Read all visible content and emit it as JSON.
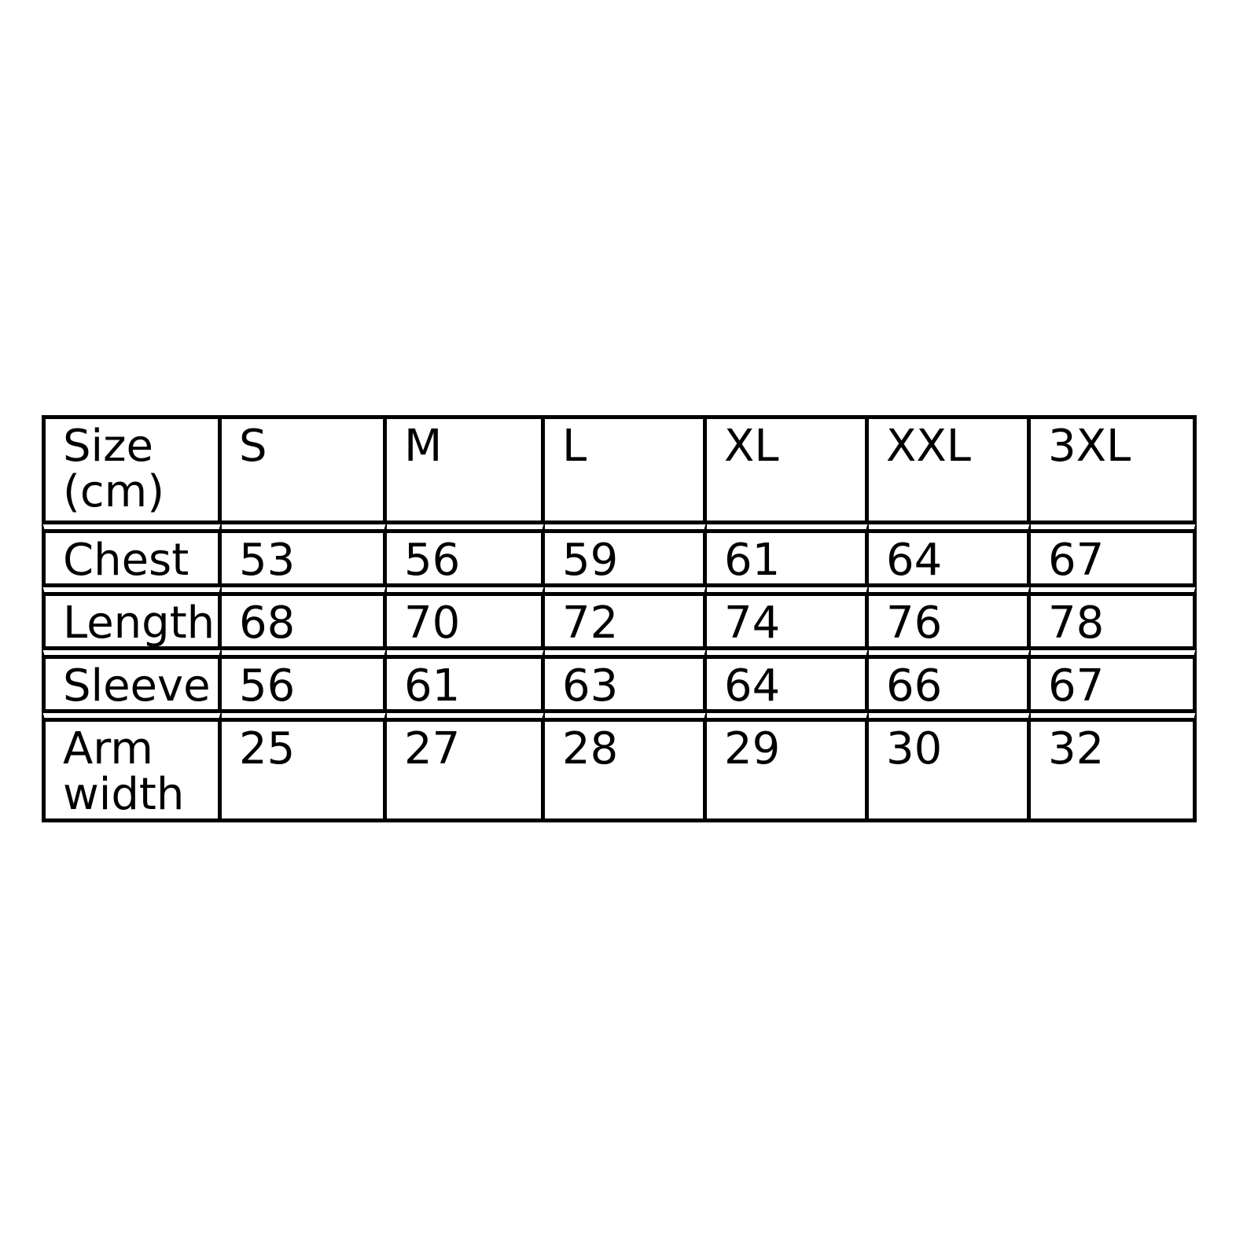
{
  "table": {
    "columns": [
      "Size (cm)",
      "S",
      "M",
      "L",
      "XL",
      "XXL",
      "3XL"
    ],
    "rows": [
      {
        "label": "Chest",
        "values": [
          "53",
          "56",
          "59",
          "61",
          "64",
          "67"
        ]
      },
      {
        "label": "Length",
        "values": [
          "68",
          "70",
          "72",
          "74",
          "76",
          "78"
        ]
      },
      {
        "label": "Sleeve",
        "values": [
          "56",
          "61",
          "63",
          "64",
          "66",
          "67"
        ]
      },
      {
        "label": "Arm width",
        "values": [
          "25",
          "27",
          "28",
          "29",
          "30",
          "32"
        ]
      }
    ],
    "colors": {
      "border": "#000000",
      "text": "#000000",
      "background": "#ffffff"
    }
  },
  "chart_data": {
    "type": "table",
    "units": "cm",
    "columns": [
      "Size (cm)",
      "S",
      "M",
      "L",
      "XL",
      "XXL",
      "3XL"
    ],
    "rows": [
      [
        "Chest",
        53,
        56,
        59,
        61,
        64,
        67
      ],
      [
        "Length",
        68,
        70,
        72,
        74,
        76,
        78
      ],
      [
        "Sleeve",
        56,
        61,
        63,
        64,
        66,
        67
      ],
      [
        "Arm width",
        25,
        27,
        28,
        29,
        30,
        32
      ]
    ]
  }
}
